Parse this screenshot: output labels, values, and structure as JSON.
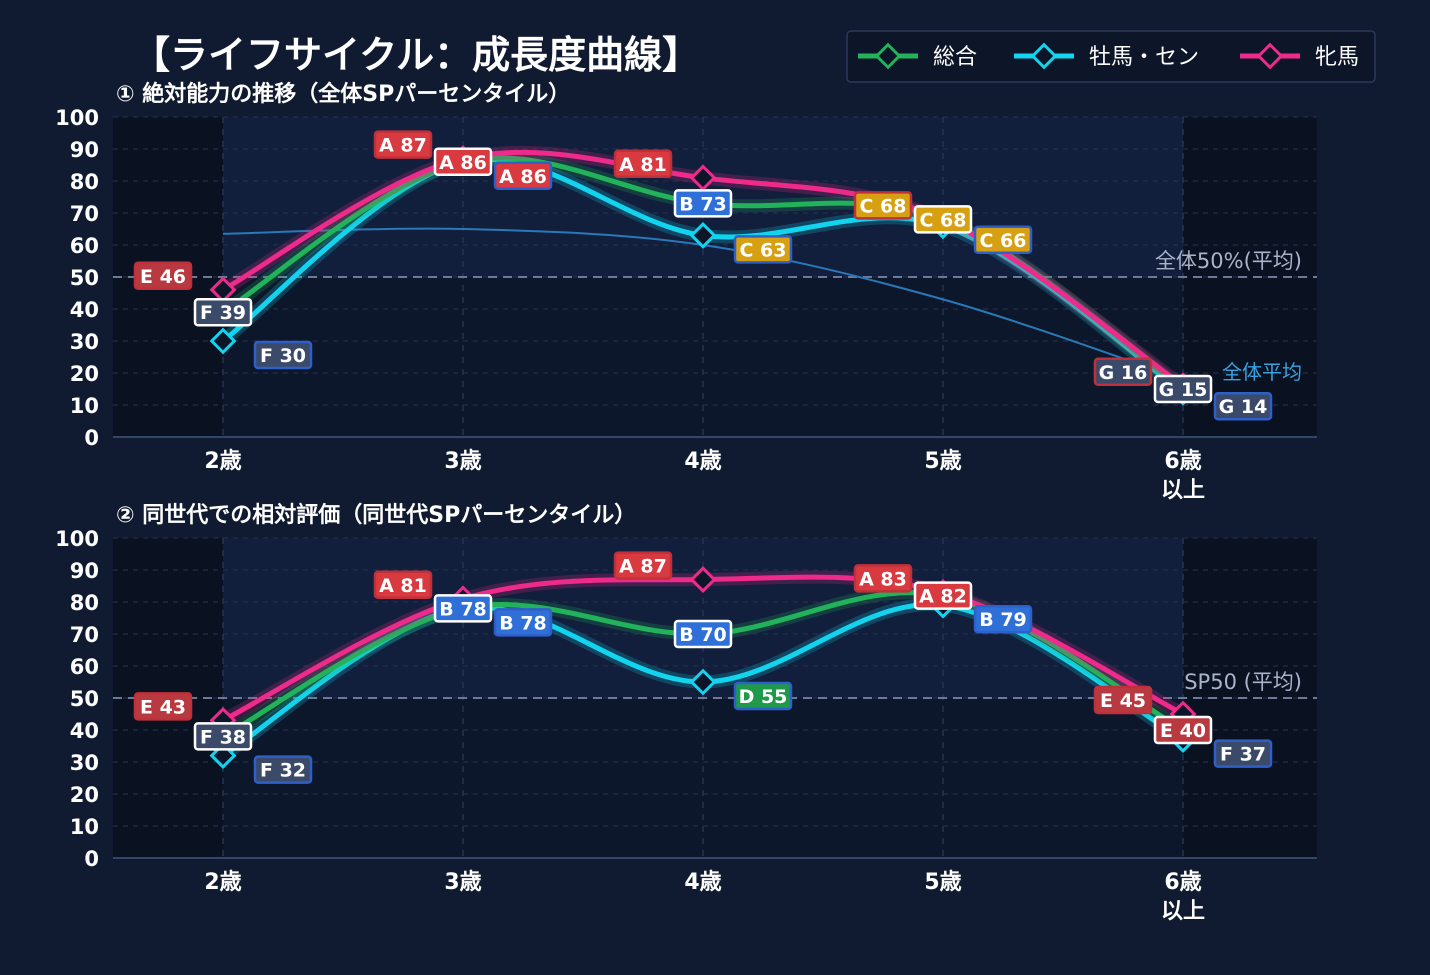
{
  "title": "【ライフサイクル：成長度曲線】",
  "colors": {
    "background": "#101a30",
    "plot_bg": "#0a1222",
    "band": "#142345",
    "total": "#22b35a",
    "colt": "#12d4ee",
    "filly": "#ee2a8a",
    "avg_line": "#2a78b8",
    "grade": {
      "A": "#d83a40",
      "B": "#2f70d8",
      "C": "#d6a012",
      "D": "#1e9a4a",
      "E": "#b83a40",
      "F": "#3a4a68",
      "G": "#3a4a68"
    }
  },
  "legend": [
    {
      "key": "total",
      "label": "総合"
    },
    {
      "key": "colt",
      "label": "牡馬・セン"
    },
    {
      "key": "filly",
      "label": "牝馬"
    }
  ],
  "chart_data": [
    {
      "type": "line",
      "title": "① 絶対能力の推移（全体SPパーセンタイル）",
      "categories": [
        "2歳",
        "3歳",
        "4歳",
        "5歳",
        "6歳\n以上"
      ],
      "ylim": [
        0,
        100
      ],
      "yticks": [
        0,
        10,
        20,
        30,
        40,
        50,
        60,
        70,
        80,
        90,
        100
      ],
      "grid": true,
      "reference_line": {
        "value": 50,
        "label": "全体50%(平均)"
      },
      "average_curve": {
        "label": "全体平均",
        "values": [
          63.5,
          65,
          60,
          43,
          18
        ]
      },
      "series": [
        {
          "name": "総合",
          "key": "total",
          "values": [
            39,
            86,
            73,
            68,
            15
          ],
          "labels": [
            "F 39",
            "A 86",
            "B 73",
            "C 68",
            "G 15"
          ]
        },
        {
          "name": "牡馬・セン",
          "key": "colt",
          "values": [
            30,
            86,
            63,
            66,
            14
          ],
          "labels": [
            "F 30",
            "A 86",
            "C 63",
            "C 66",
            "G 14"
          ]
        },
        {
          "name": "牝馬",
          "key": "filly",
          "values": [
            46,
            87,
            81,
            68,
            16
          ],
          "labels": [
            "E 46",
            "A 87",
            "A 81",
            "C 68",
            "G 16"
          ]
        }
      ]
    },
    {
      "type": "line",
      "title": "② 同世代での相対評価（同世代SPパーセンタイル）",
      "categories": [
        "2歳",
        "3歳",
        "4歳",
        "5歳",
        "6歳\n以上"
      ],
      "ylim": [
        0,
        100
      ],
      "yticks": [
        0,
        10,
        20,
        30,
        40,
        50,
        60,
        70,
        80,
        90,
        100
      ],
      "grid": true,
      "reference_line": {
        "value": 50,
        "label": "SP50 (平均)"
      },
      "series": [
        {
          "name": "総合",
          "key": "total",
          "values": [
            38,
            78,
            70,
            82,
            40
          ],
          "labels": [
            "F 38",
            "B 78",
            "B 70",
            "A 82",
            "E 40"
          ]
        },
        {
          "name": "牡馬・セン",
          "key": "colt",
          "values": [
            32,
            78,
            55,
            79,
            37
          ],
          "labels": [
            "F 32",
            "B 78",
            "D 55",
            "B 79",
            "F 37"
          ]
        },
        {
          "name": "牝馬",
          "key": "filly",
          "values": [
            43,
            81,
            87,
            83,
            45
          ],
          "labels": [
            "E 43",
            "A 81",
            "A 87",
            "A 83",
            "E 45"
          ]
        }
      ]
    }
  ]
}
